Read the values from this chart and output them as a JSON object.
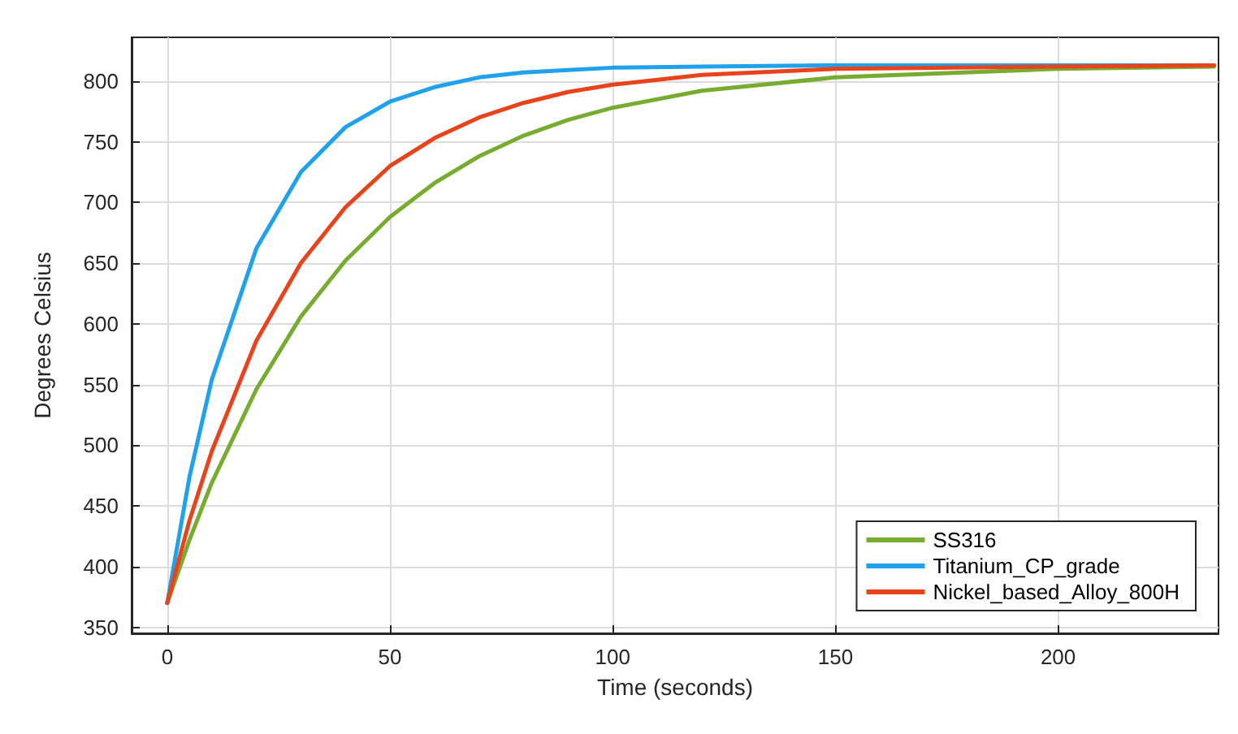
{
  "chart_data": {
    "type": "line",
    "xlabel": "Time (seconds)",
    "ylabel": "Degrees Celsius",
    "x": [
      0,
      5,
      10,
      20,
      30,
      40,
      50,
      60,
      70,
      80,
      90,
      100,
      120,
      150,
      200,
      235
    ],
    "series": [
      {
        "name": "SS316",
        "color": "#77ac30",
        "values": [
          370,
          422,
          469,
          546,
          606,
          652,
          688,
          716,
          738,
          755,
          768,
          778,
          792,
          803,
          810,
          812
        ]
      },
      {
        "name": "Titanium_CP_grade",
        "color": "#1fa1ec",
        "values": [
          370,
          474,
          554,
          662,
          725,
          762,
          783,
          795,
          803,
          807,
          809,
          811,
          812,
          813,
          813,
          813
        ]
      },
      {
        "name": "Nickel_based_Alloy_800H",
        "color": "#e8431a",
        "values": [
          370,
          438,
          495,
          586,
          650,
          696,
          730,
          753,
          770,
          782,
          791,
          797,
          805,
          810,
          812,
          813
        ]
      }
    ],
    "xlim": [
      -8,
      236
    ],
    "xticks": [
      0,
      50,
      100,
      150,
      200
    ],
    "ylim": [
      345,
      836
    ],
    "yticks": [
      350,
      400,
      450,
      500,
      550,
      600,
      650,
      700,
      750,
      800
    ],
    "grid": true,
    "legend": "bottom right",
    "marker": "none",
    "line_style": "solid"
  }
}
